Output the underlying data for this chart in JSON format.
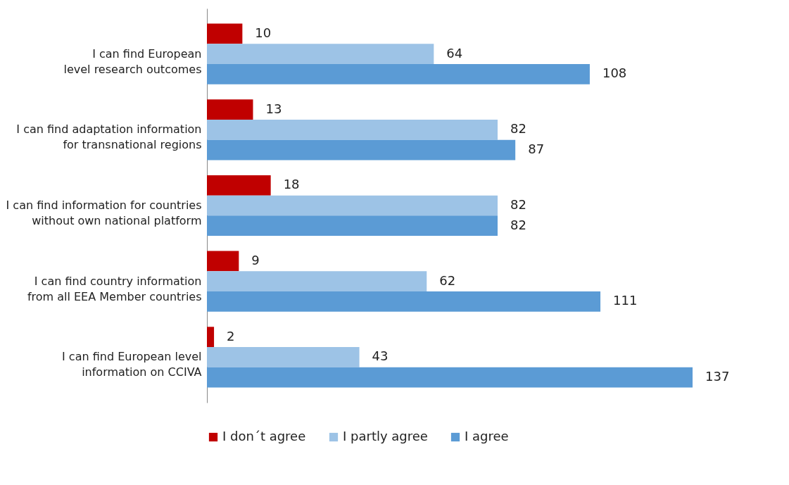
{
  "chart_data": {
    "type": "bar",
    "orientation": "horizontal",
    "data_labels": true,
    "legend": "bottom",
    "categories": [
      "I can find European level research outcomes",
      "I can find adaptation information for transnational regions",
      "I can find information for countries without own national platform",
      "I can find country information from all EEA Member countries",
      "I can find European level information on CCIVA"
    ],
    "series": [
      {
        "name": "I don´t agree",
        "color": "#c00000",
        "values": [
          10,
          13,
          18,
          9,
          2
        ]
      },
      {
        "name": "I partly agree",
        "color": "#9dc3e6",
        "values": [
          64,
          82,
          82,
          62,
          43
        ]
      },
      {
        "name": "I agree",
        "color": "#5b9bd5",
        "values": [
          108,
          87,
          82,
          111,
          137
        ]
      }
    ]
  }
}
